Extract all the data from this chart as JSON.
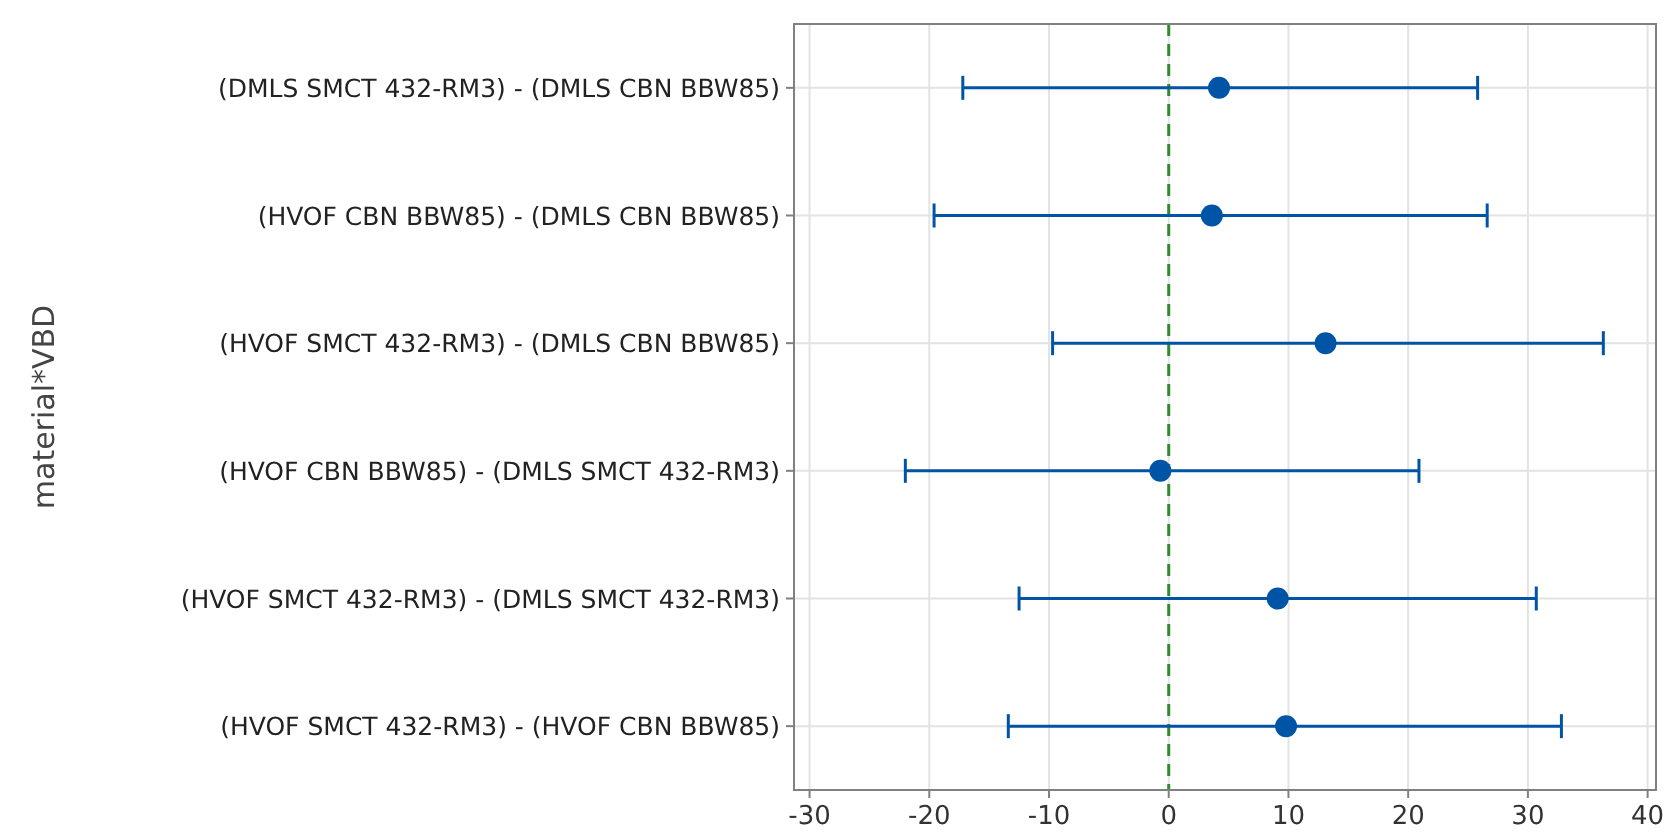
{
  "chart_data": {
    "type": "scatter",
    "orientation": "horizontal",
    "ylabel": "material*VBD",
    "categories": [
      "(DMLS SMCT 432-RM3) - (DMLS CBN BBW85)",
      "(HVOF CBN BBW85) - (DMLS CBN BBW85)",
      "(HVOF SMCT 432-RM3) - (DMLS CBN BBW85)",
      "(HVOF CBN BBW85) - (DMLS SMCT 432-RM3)",
      "(HVOF SMCT 432-RM3) - (DMLS SMCT 432-RM3)",
      "(HVOF SMCT 432-RM3) - (HVOF CBN BBW85)"
    ],
    "series": [
      {
        "color": "#0054a6",
        "values": [
          4.2,
          3.6,
          13.1,
          -0.7,
          9.1,
          9.8
        ],
        "errors": [
          [
            -17.2,
            25.8
          ],
          [
            -19.6,
            26.6
          ],
          [
            -9.7,
            36.3
          ],
          [
            -22.0,
            20.9
          ],
          [
            -12.5,
            30.7
          ],
          [
            -13.4,
            32.8
          ]
        ]
      }
    ],
    "xlim": [
      -31.3,
      40.7
    ],
    "xticks": [
      -30,
      -20,
      -10,
      0,
      10,
      20,
      30,
      40
    ],
    "grid": true,
    "marker": "circle",
    "ref_lines": [
      {
        "axis": "x",
        "value": 0,
        "color": "#2e8b2e",
        "line_style": "dashed"
      }
    ]
  }
}
